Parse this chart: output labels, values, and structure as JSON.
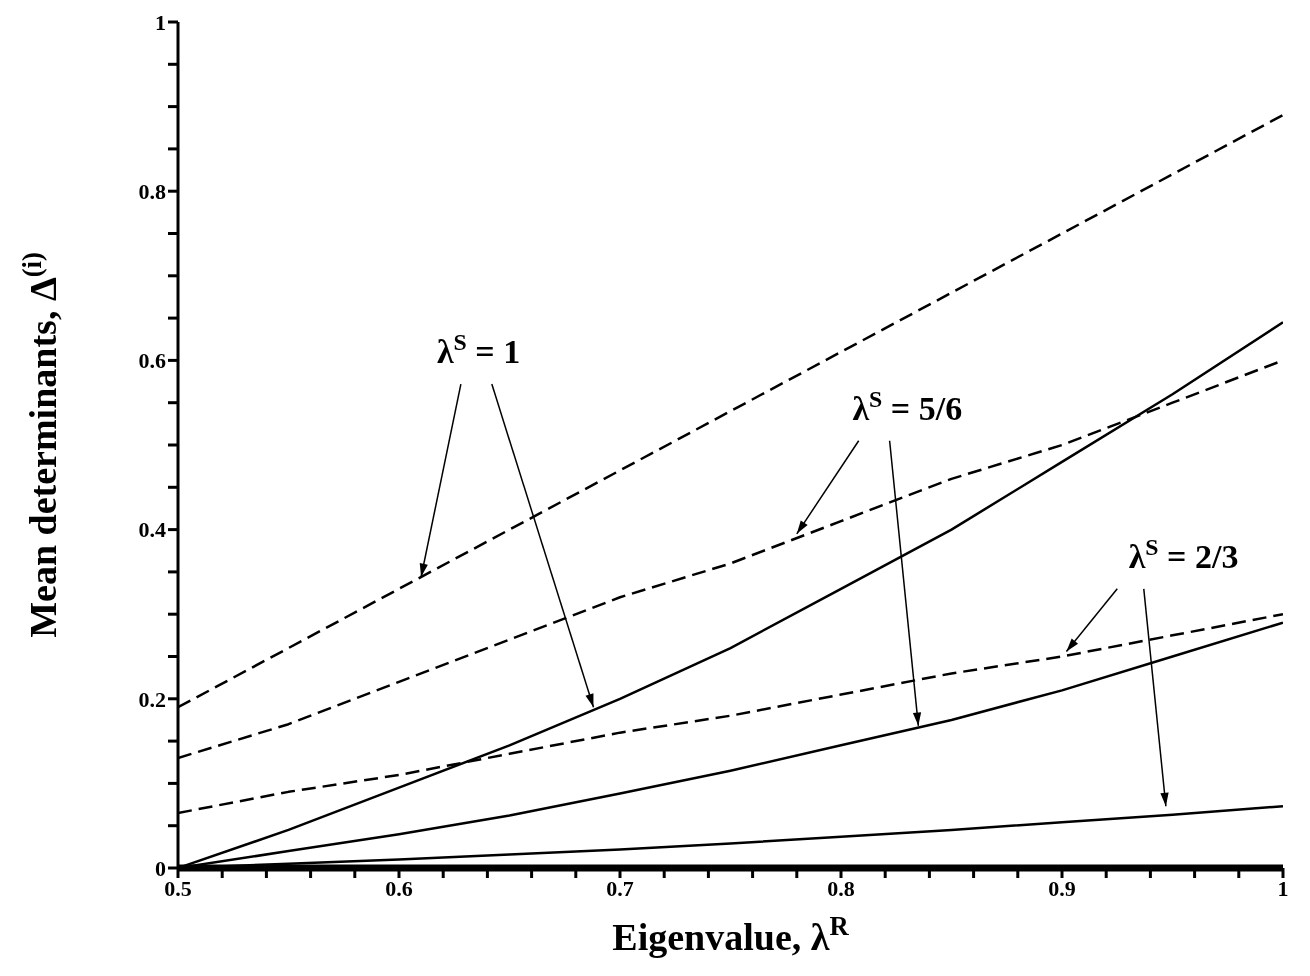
{
  "chart_data": {
    "type": "line",
    "xlabel": "Eigenvalue, λ$^{R}$",
    "ylabel": "Mean determinants, Δ$^{(i)}$",
    "x": [
      0.5,
      0.55,
      0.6,
      0.65,
      0.7,
      0.75,
      0.8,
      0.85,
      0.9,
      0.95,
      1
    ],
    "series": [
      {
        "color": "#000000",
        "line_style": "dashed",
        "values": [
          0.19,
          0.26,
          0.33,
          0.4,
          0.47,
          0.54,
          0.61,
          0.68,
          0.75,
          0.82,
          0.89
        ]
      },
      {
        "color": "#000000",
        "line_style": "dashed",
        "values": [
          0.13,
          0.17,
          0.22,
          0.27,
          0.32,
          0.36,
          0.41,
          0.46,
          0.5,
          0.55,
          0.6
        ]
      },
      {
        "color": "#000000",
        "line_style": "dashed",
        "values": [
          0.065,
          0.09,
          0.11,
          0.135,
          0.16,
          0.18,
          0.205,
          0.23,
          0.25,
          0.275,
          0.3
        ]
      },
      {
        "color": "#000000",
        "line_style": "solid",
        "values": [
          0,
          0.045,
          0.095,
          0.145,
          0.2,
          0.26,
          0.33,
          0.4,
          0.48,
          0.56,
          0.645
        ]
      },
      {
        "color": "#000000",
        "line_style": "solid",
        "values": [
          0,
          0.02,
          0.04,
          0.062,
          0.088,
          0.115,
          0.145,
          0.175,
          0.21,
          0.25,
          0.29
        ]
      },
      {
        "color": "#000000",
        "line_style": "solid",
        "values": [
          0,
          0.005,
          0.01,
          0.016,
          0.022,
          0.029,
          0.037,
          0.045,
          0.054,
          0.063,
          0.073
        ]
      }
    ],
    "xlim": [
      0.5,
      1
    ],
    "ylim": [
      0,
      1
    ],
    "xticks": [
      0.5,
      {
        "value": 0.52,
        "label": null
      },
      {
        "value": 0.54,
        "label": null
      },
      {
        "value": 0.56,
        "label": null
      },
      {
        "value": 0.58,
        "label": null
      },
      0.6,
      {
        "value": 0.62,
        "label": null
      },
      {
        "value": 0.64,
        "label": null
      },
      {
        "value": 0.66,
        "label": null
      },
      {
        "value": 0.68,
        "label": null
      },
      0.7,
      {
        "value": 0.72,
        "label": null
      },
      {
        "value": 0.74,
        "label": null
      },
      {
        "value": 0.76,
        "label": null
      },
      {
        "value": 0.78,
        "label": null
      },
      0.8,
      {
        "value": 0.82,
        "label": null
      },
      {
        "value": 0.84,
        "label": null
      },
      {
        "value": 0.86,
        "label": null
      },
      {
        "value": 0.88,
        "label": null
      },
      0.9,
      {
        "value": 0.92,
        "label": null
      },
      {
        "value": 0.94,
        "label": null
      },
      {
        "value": 0.96,
        "label": null
      },
      {
        "value": 0.98,
        "label": null
      },
      1
    ],
    "yticks": [
      0,
      {
        "value": 0.05,
        "label": null
      },
      {
        "value": 0.1,
        "label": null
      },
      {
        "value": 0.15,
        "label": null
      },
      0.2,
      {
        "value": 0.25,
        "label": null
      },
      {
        "value": 0.3,
        "label": null
      },
      {
        "value": 0.35,
        "label": null
      },
      0.4,
      {
        "value": 0.45,
        "label": null
      },
      {
        "value": 0.5,
        "label": null
      },
      {
        "value": 0.55,
        "label": null
      },
      0.6,
      {
        "value": 0.65,
        "label": null
      },
      {
        "value": 0.7,
        "label": null
      },
      {
        "value": 0.75,
        "label": null
      },
      0.8,
      {
        "value": 0.85,
        "label": null
      },
      {
        "value": 0.9,
        "label": null
      },
      {
        "value": 0.95,
        "label": null
      },
      1
    ],
    "annotations": [
      {
        "text": "λ$^{S}$ = 1",
        "x": 0.61,
        "y": 0.344
      },
      {
        "text": "λ$^{S}$ = 5/6",
        "x": 0.78,
        "y": 0.395
      },
      {
        "text": "λ$^{S}$ = 2/3",
        "x": 0.902,
        "y": 0.256
      }
    ],
    "marker": "none"
  }
}
